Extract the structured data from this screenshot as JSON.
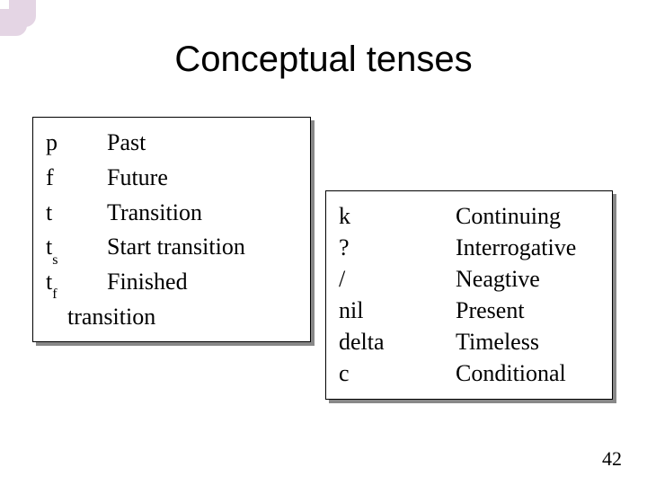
{
  "title": "Conceptual tenses",
  "page_number": "42",
  "colors": {
    "background": "#ffffff",
    "text": "#000000",
    "box_border": "#000000",
    "box_shadow": "#888888",
    "decor": "#e4d5e4"
  },
  "typography": {
    "title_fontsize": 40,
    "body_fontsize": 26,
    "subscript_fontsize": 16,
    "title_family": "Arial",
    "body_family": "Times New Roman"
  },
  "box1": {
    "rows": [
      {
        "symbol": "p",
        "sub": "",
        "label": "Past"
      },
      {
        "symbol": "f",
        "sub": "",
        "label": "Future"
      },
      {
        "symbol": "t",
        "sub": "",
        "label": "Transition"
      },
      {
        "symbol": "t",
        "sub": "s",
        "label": "Start transition"
      },
      {
        "symbol": "t",
        "sub": "f",
        "label": "Finished"
      }
    ],
    "continuation": "transition"
  },
  "box2": {
    "rows": [
      {
        "symbol": "k",
        "label": "Continuing"
      },
      {
        "symbol": "?",
        "label": "Interrogative"
      },
      {
        "symbol": "/",
        "label": "Neagtive"
      },
      {
        "symbol": "nil",
        "label": "Present"
      },
      {
        "symbol": "delta",
        "label": "Timeless"
      },
      {
        "symbol": "c",
        "label": "Conditional"
      }
    ]
  }
}
